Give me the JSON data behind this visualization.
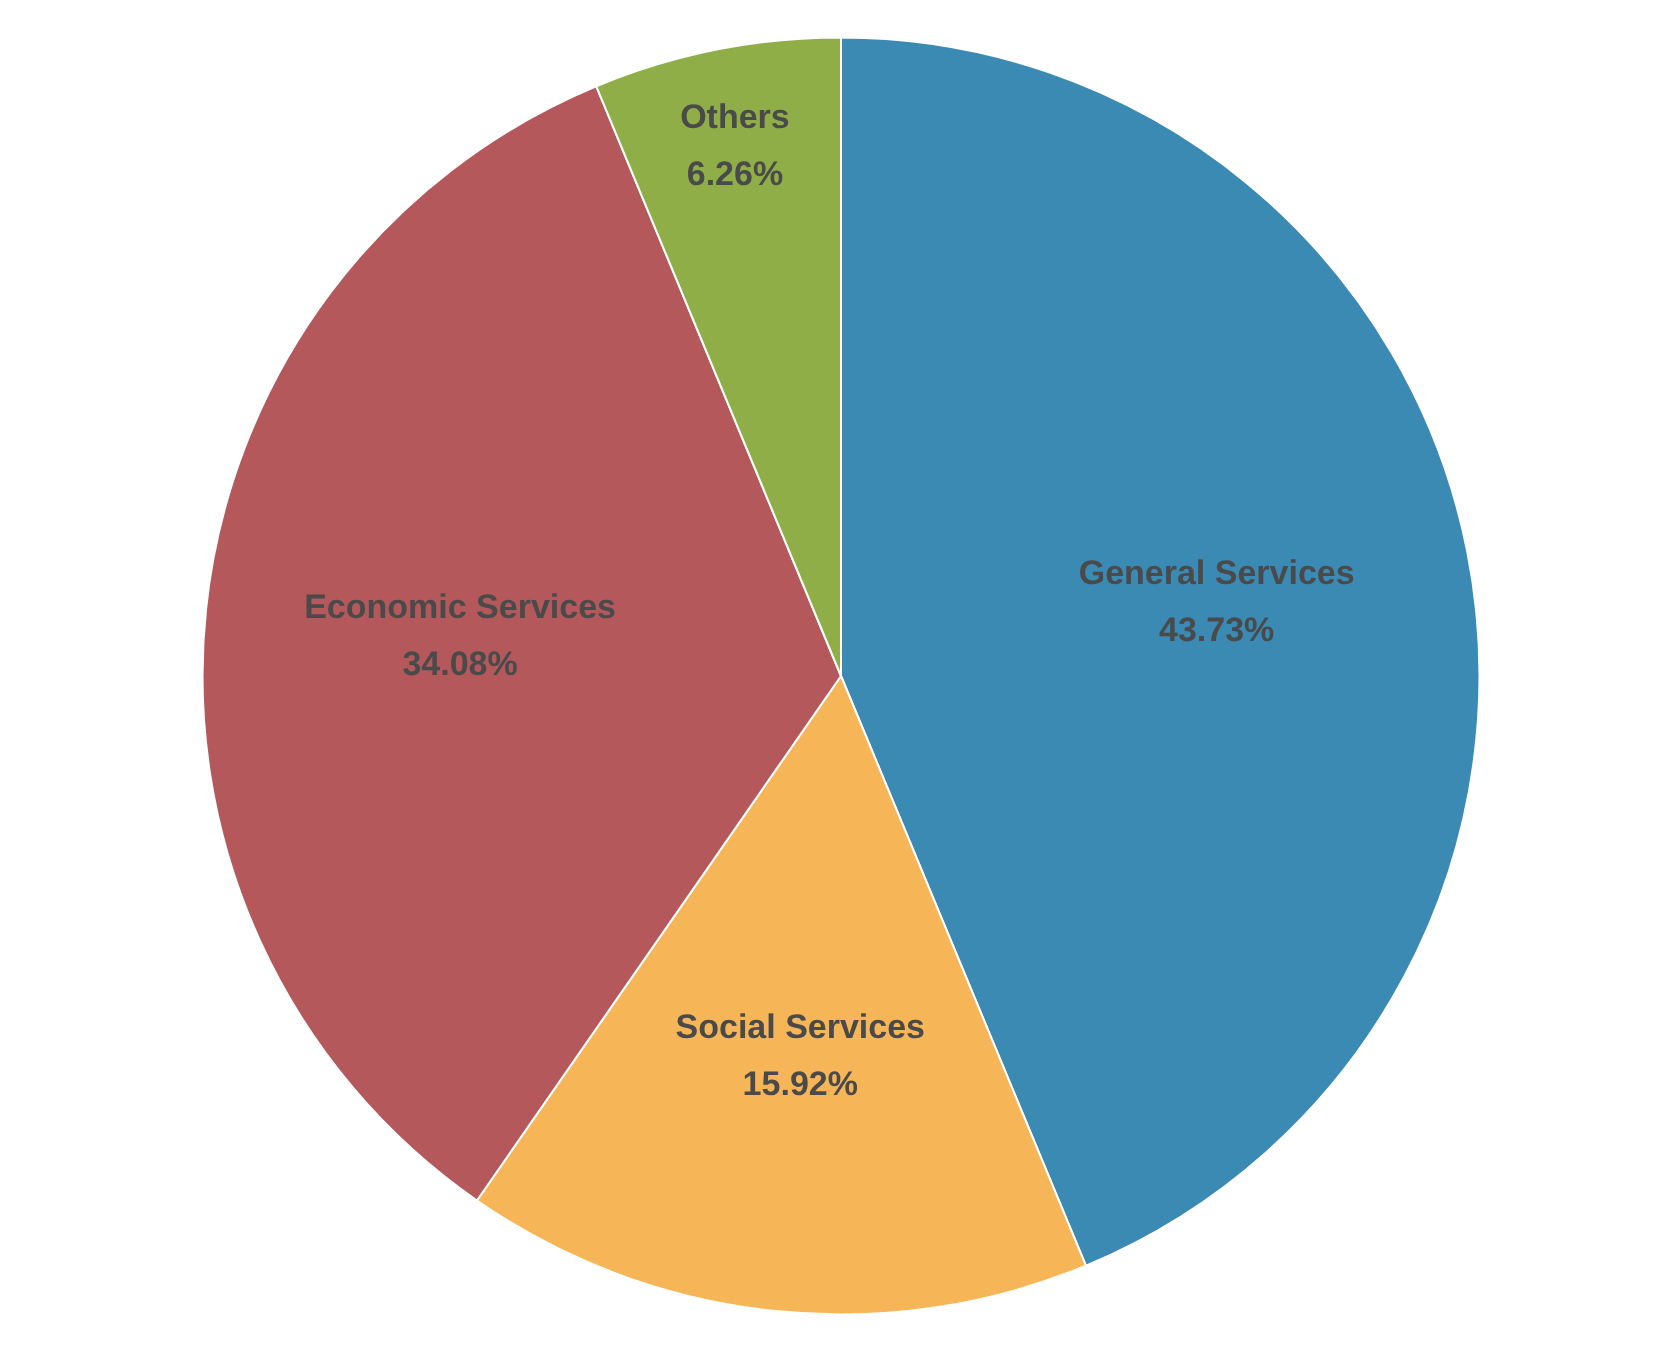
{
  "chart_data": {
    "type": "pie",
    "categories": [
      "General Services",
      "Social Services",
      "Economic Services",
      "Others"
    ],
    "values": [
      43.73,
      15.92,
      34.08,
      6.26
    ],
    "colors": [
      "#3a8ab4",
      "#f6b556",
      "#b4585b",
      "#8fae48"
    ],
    "value_labels": [
      "43.73%",
      "15.92%",
      "34.08%",
      "6.26%"
    ]
  }
}
